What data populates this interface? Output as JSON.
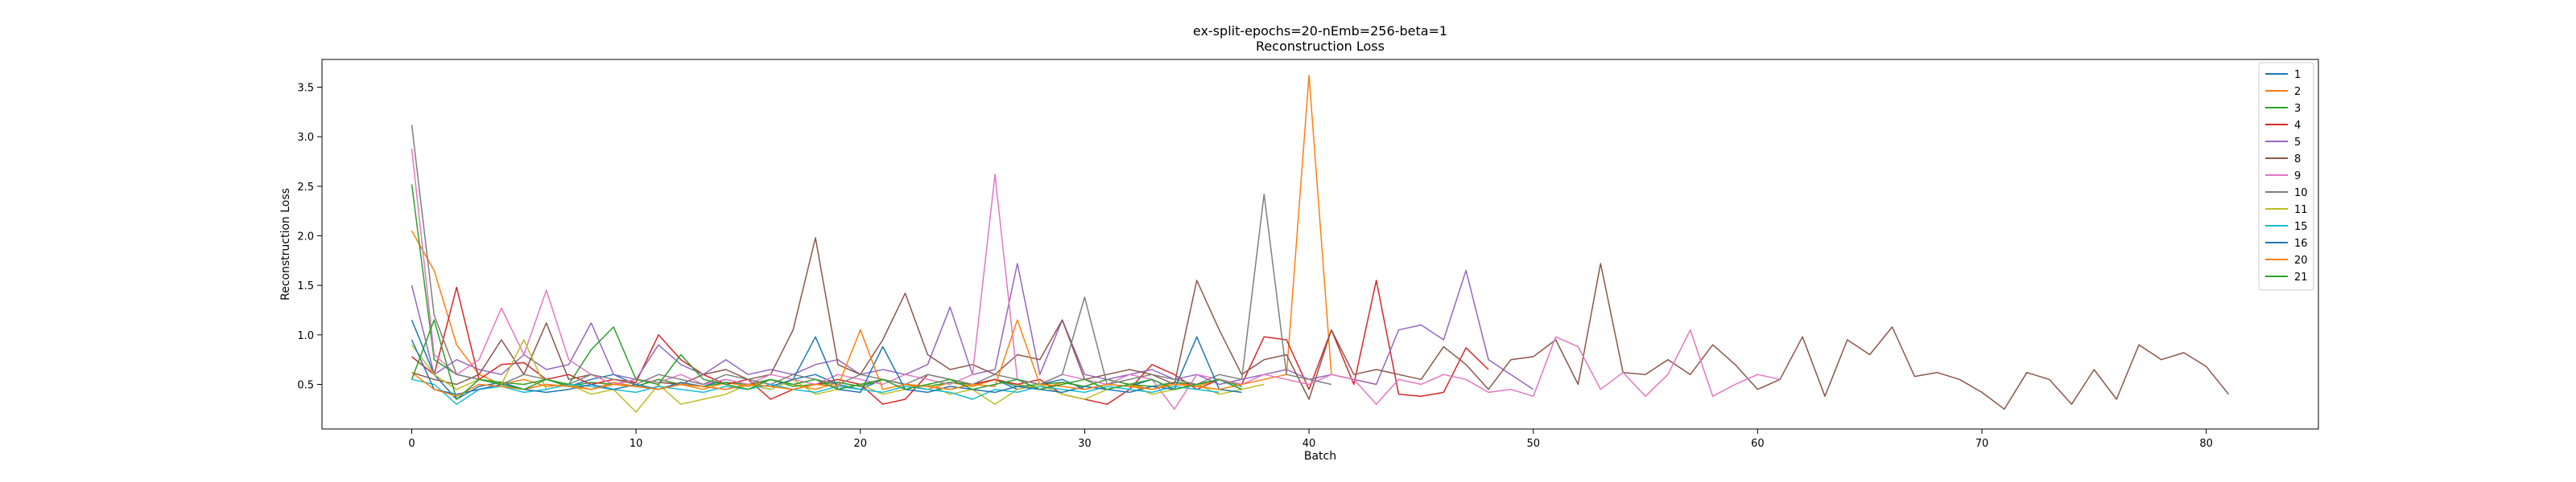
{
  "chart_data": {
    "type": "line",
    "title": "ex-split-epochs=20-nEmb=256-beta=1",
    "subtitle": "Reconstruction Loss",
    "xlabel": "Batch",
    "ylabel": "Reconstruction Loss",
    "xlim": [
      -4,
      85
    ],
    "ylim": [
      0.05,
      3.78
    ],
    "xticks": [
      "0",
      "10",
      "20",
      "30",
      "40",
      "50",
      "60",
      "70",
      "80"
    ],
    "yticks": [
      "0.5",
      "1.0",
      "1.5",
      "2.0",
      "2.5",
      "3.0",
      "3.5"
    ],
    "grid": false,
    "legend_position": "top-right",
    "series": [
      {
        "name": "1",
        "color": "#1f77b4",
        "values": [
          1.15,
          0.6,
          0.35,
          0.48,
          0.52,
          0.45,
          0.5,
          0.48,
          0.55,
          0.6,
          0.5,
          0.45,
          0.52,
          0.48,
          0.55,
          0.5,
          0.45,
          0.55,
          0.6,
          0.5,
          0.45,
          0.55,
          0.5,
          0.48,
          0.45,
          0.5,
          0.55,
          0.45,
          0.5,
          0.55,
          0.45,
          0.5,
          0.48,
          0.55,
          0.45,
          0.5,
          0.55,
          0.45
        ]
      },
      {
        "name": "2",
        "color": "#ff7f0e",
        "values": [
          2.05,
          1.65,
          0.9,
          0.6,
          0.5,
          0.55,
          0.48,
          0.5,
          0.45,
          0.52,
          0.48,
          0.55,
          0.5,
          0.45,
          0.52,
          0.48,
          0.55,
          0.5,
          0.45,
          0.52,
          0.48,
          0.55,
          0.5,
          0.45,
          0.52,
          0.48,
          0.55,
          0.5,
          0.45,
          0.52,
          0.48,
          0.55,
          0.5,
          0.45,
          0.52,
          0.48,
          0.55,
          0.5,
          0.55,
          0.6,
          3.62,
          0.6,
          0.55,
          0.5
        ]
      },
      {
        "name": "3",
        "color": "#2ca02c",
        "values": [
          2.52,
          0.75,
          0.6,
          0.55,
          0.52,
          0.5,
          0.55,
          0.48,
          0.52,
          0.5,
          0.48,
          0.55,
          0.5,
          0.48,
          0.52,
          0.5,
          0.55,
          0.48,
          0.5,
          0.52,
          0.48,
          0.55,
          0.5,
          0.48,
          0.52,
          0.5,
          0.55,
          0.48,
          0.5,
          0.52,
          0.48,
          0.55,
          0.5,
          0.48,
          0.52,
          0.5,
          0.55,
          0.48
        ]
      },
      {
        "name": "4",
        "color": "#d62728",
        "values": [
          0.78,
          0.6,
          1.48,
          0.55,
          0.7,
          0.72,
          0.55,
          0.6,
          0.5,
          0.55,
          0.52,
          1.0,
          0.75,
          0.6,
          0.5,
          0.55,
          0.35,
          0.45,
          0.5,
          0.55,
          0.5,
          0.3,
          0.35,
          0.6,
          0.55,
          0.5,
          0.55,
          0.5,
          0.55,
          0.4,
          0.35,
          0.3,
          0.45,
          0.7,
          0.6,
          0.45,
          0.55,
          0.5,
          0.98,
          0.95,
          0.45,
          1.05,
          0.5,
          1.55,
          0.4,
          0.38,
          0.42,
          0.87,
          0.65
        ]
      },
      {
        "name": "5",
        "color": "#9467bd",
        "values": [
          1.5,
          0.6,
          0.75,
          0.65,
          0.6,
          0.8,
          0.65,
          0.7,
          1.12,
          0.6,
          0.55,
          0.9,
          0.7,
          0.6,
          0.75,
          0.6,
          0.65,
          0.6,
          0.7,
          0.75,
          0.6,
          0.65,
          0.6,
          0.7,
          1.28,
          0.6,
          0.65,
          1.72,
          0.6,
          1.15,
          0.6,
          0.55,
          0.6,
          0.65,
          0.55,
          0.6,
          0.5,
          0.55,
          0.6,
          0.65,
          0.55,
          0.6,
          0.55,
          0.5,
          1.05,
          1.1,
          0.95,
          1.65,
          0.75,
          0.6,
          0.45
        ]
      },
      {
        "name": "8",
        "color": "#8c564b",
        "values": [
          0.62,
          0.55,
          0.5,
          0.6,
          0.95,
          0.6,
          1.12,
          0.55,
          0.6,
          0.5,
          0.55,
          0.52,
          0.5,
          0.6,
          0.65,
          0.55,
          0.6,
          1.05,
          1.98,
          0.7,
          0.6,
          0.95,
          1.42,
          0.8,
          0.65,
          0.7,
          0.6,
          0.8,
          0.75,
          1.15,
          0.55,
          0.6,
          0.65,
          0.6,
          0.5,
          1.55,
          1.05,
          0.6,
          0.75,
          0.8,
          0.35,
          1.05,
          0.6,
          0.65,
          0.6,
          0.55,
          0.88,
          0.7,
          0.45,
          0.75,
          0.78,
          0.95,
          0.5,
          1.72,
          0.62,
          0.6,
          0.75,
          0.6,
          0.9,
          0.7,
          0.45,
          0.55,
          0.98,
          0.38,
          0.95,
          0.8,
          1.08,
          0.58,
          0.62,
          0.55,
          0.42,
          0.25,
          0.62,
          0.55,
          0.3,
          0.65,
          0.35,
          0.9,
          0.75,
          0.82,
          0.68,
          0.4
        ]
      },
      {
        "name": "9",
        "color": "#e377c2",
        "values": [
          2.88,
          0.8,
          0.6,
          0.75,
          1.27,
          0.8,
          1.45,
          0.75,
          0.6,
          0.5,
          0.55,
          0.52,
          0.6,
          0.5,
          0.55,
          0.5,
          0.6,
          0.55,
          0.5,
          0.6,
          0.55,
          0.5,
          0.6,
          0.55,
          0.5,
          0.6,
          2.62,
          0.55,
          0.5,
          0.6,
          0.55,
          0.5,
          0.6,
          0.55,
          0.25,
          0.6,
          0.55,
          0.5,
          0.6,
          0.55,
          0.5,
          0.6,
          0.55,
          0.3,
          0.55,
          0.5,
          0.6,
          0.55,
          0.42,
          0.45,
          0.38,
          0.98,
          0.88,
          0.45,
          0.62,
          0.38,
          0.6,
          1.05,
          0.38,
          0.5,
          0.6,
          0.55
        ]
      },
      {
        "name": "10",
        "color": "#7f7f7f",
        "values": [
          3.12,
          1.2,
          0.6,
          0.55,
          0.5,
          0.6,
          0.55,
          0.5,
          0.6,
          0.55,
          0.5,
          0.6,
          0.55,
          0.5,
          0.6,
          0.55,
          0.5,
          0.6,
          0.55,
          0.5,
          0.6,
          0.55,
          0.5,
          0.6,
          0.55,
          0.5,
          0.6,
          0.55,
          0.5,
          0.6,
          1.38,
          0.5,
          0.55,
          0.6,
          0.55,
          0.5,
          0.6,
          0.55,
          2.42,
          0.6,
          0.55,
          0.5
        ]
      },
      {
        "name": "11",
        "color": "#bcbd22",
        "values": [
          0.9,
          0.6,
          0.45,
          0.55,
          0.5,
          0.95,
          0.45,
          0.5,
          0.4,
          0.45,
          0.22,
          0.5,
          0.3,
          0.35,
          0.4,
          0.5,
          0.45,
          0.55,
          0.4,
          0.45,
          0.5,
          0.4,
          0.45,
          0.5,
          0.4,
          0.45,
          0.3,
          0.45,
          0.5,
          0.4,
          0.35,
          0.45,
          0.5,
          0.4,
          0.45,
          0.5,
          0.4,
          0.45,
          0.5
        ]
      },
      {
        "name": "15",
        "color": "#17becf",
        "values": [
          0.55,
          0.5,
          0.3,
          0.45,
          0.48,
          0.42,
          0.45,
          0.5,
          0.48,
          0.45,
          0.42,
          0.48,
          0.45,
          0.42,
          0.48,
          0.45,
          0.5,
          0.45,
          0.42,
          0.48,
          0.45,
          0.42,
          0.48,
          0.45,
          0.42,
          0.35,
          0.45,
          0.42,
          0.48,
          0.45,
          0.42,
          0.48,
          0.45,
          0.42,
          0.48,
          0.45,
          0.42
        ]
      },
      {
        "name": "16",
        "color": "#1f77b4",
        "values": [
          0.95,
          0.45,
          0.4,
          0.45,
          0.5,
          0.45,
          0.42,
          0.45,
          0.5,
          0.45,
          0.5,
          0.45,
          0.5,
          0.48,
          0.45,
          0.5,
          0.48,
          0.55,
          0.98,
          0.45,
          0.42,
          0.88,
          0.45,
          0.42,
          0.48,
          0.45,
          0.42,
          0.48,
          0.45,
          0.42,
          0.48,
          0.45,
          0.42,
          0.48,
          0.45,
          0.98,
          0.45,
          0.42
        ]
      },
      {
        "name": "20",
        "color": "#ff7f0e",
        "values": [
          0.62,
          0.45,
          0.38,
          0.5,
          0.48,
          0.45,
          0.5,
          0.48,
          0.45,
          0.5,
          0.48,
          0.45,
          0.5,
          0.48,
          0.45,
          0.5,
          0.48,
          0.45,
          0.5,
          0.48,
          1.05,
          0.45,
          0.5,
          0.48,
          0.45,
          0.5,
          0.48,
          1.15,
          0.5,
          0.48,
          0.45,
          0.5,
          0.48,
          0.45,
          0.5,
          0.48,
          0.45,
          0.5
        ]
      },
      {
        "name": "21",
        "color": "#2ca02c",
        "values": [
          0.55,
          1.15,
          0.35,
          0.55,
          0.5,
          0.45,
          0.55,
          0.5,
          0.85,
          1.08,
          0.55,
          0.5,
          0.8,
          0.55,
          0.5,
          0.45,
          0.55,
          0.5,
          0.55,
          0.45,
          0.5,
          0.55,
          0.45,
          0.5,
          0.55,
          0.45,
          0.5,
          0.55,
          0.45,
          0.5,
          0.55,
          0.45,
          0.5,
          0.55,
          0.45,
          0.5,
          0.55,
          0.45
        ]
      }
    ]
  }
}
